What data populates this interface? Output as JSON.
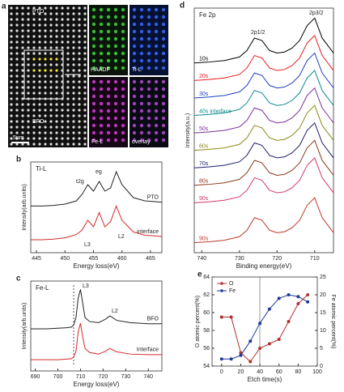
{
  "image_panel": {
    "panel": "a",
    "labels": [
      "PTO",
      "BFO",
      "5nm",
      "HAADF",
      "Ti-L",
      "Fe-L",
      "overlay"
    ]
  },
  "chart_data": [
    {
      "type": "line",
      "panel": "b",
      "title": "Ti-L",
      "xlabel": "Energy loss(eV)",
      "ylabel": "Intensity(arb.units)",
      "annotations": [
        "t2g",
        "eg",
        "L3",
        "L2"
      ],
      "x": [
        444,
        446,
        448,
        450,
        452,
        453,
        454,
        455,
        456,
        457,
        458,
        459,
        460,
        462,
        464,
        467
      ],
      "xlim": [
        444,
        467
      ],
      "xticks": [
        445,
        450,
        455,
        460,
        465
      ],
      "ylim": [
        0,
        1.4
      ],
      "series": [
        {
          "name": "PTO",
          "color": "#222222",
          "values": [
            0.72,
            0.72,
            0.73,
            0.75,
            0.8,
            0.9,
            1.05,
            0.95,
            1.1,
            0.95,
            1.0,
            1.25,
            1.05,
            0.85,
            0.8,
            0.78
          ]
        },
        {
          "name": "interface",
          "color": "#d62a2a",
          "values": [
            0.2,
            0.2,
            0.21,
            0.23,
            0.28,
            0.35,
            0.5,
            0.4,
            0.62,
            0.4,
            0.48,
            0.72,
            0.5,
            0.32,
            0.27,
            0.25
          ]
        }
      ]
    },
    {
      "type": "line",
      "panel": "c",
      "title": "Fe-L",
      "xlabel": "Energy loss(eV)",
      "ylabel": "Intensity(arb.units)",
      "annotations": [
        "L3",
        "L2"
      ],
      "x": [
        688,
        695,
        700,
        704,
        706,
        707,
        708,
        709,
        710,
        711,
        712,
        714,
        718,
        721,
        723,
        726,
        732,
        740,
        746
      ],
      "xlim": [
        688,
        746
      ],
      "xticks": [
        690,
        700,
        710,
        720,
        730,
        740
      ],
      "ylim": [
        0,
        1.6
      ],
      "series": [
        {
          "name": "BFO",
          "color": "#222222",
          "values": [
            0.75,
            0.75,
            0.76,
            0.77,
            0.78,
            0.82,
            0.95,
            1.3,
            1.45,
            1.2,
            0.95,
            0.88,
            0.86,
            0.92,
            0.98,
            0.9,
            0.86,
            0.84,
            0.84
          ]
        },
        {
          "name": "Interface",
          "color": "#d62a2a",
          "values": [
            0.2,
            0.2,
            0.2,
            0.21,
            0.22,
            0.25,
            0.35,
            0.7,
            0.85,
            0.6,
            0.4,
            0.33,
            0.3,
            0.35,
            0.4,
            0.34,
            0.3,
            0.29,
            0.29
          ]
        }
      ]
    },
    {
      "type": "line",
      "panel": "d",
      "title": "Fe 2p",
      "xlabel": "Binding energy(eV)",
      "ylabel": "Intensity(a.u.)",
      "annotations": [
        "2p1/2",
        "2p3/2"
      ],
      "x": [
        742,
        738,
        734,
        730,
        728,
        726,
        724,
        722,
        720,
        718,
        716,
        714,
        712,
        710,
        708,
        705
      ],
      "xlim": [
        742,
        705
      ],
      "xticks": [
        740,
        730,
        720,
        710
      ],
      "ylim": [
        -0.1,
        4.8
      ],
      "series": [
        {
          "name": "10s",
          "color": "#000000",
          "values": [
            3.7,
            3.72,
            3.75,
            3.82,
            3.95,
            4.2,
            4.15,
            3.95,
            3.9,
            3.92,
            4.0,
            4.15,
            4.45,
            4.6,
            4.2,
            3.9
          ]
        },
        {
          "name": "20s",
          "color": "#e41a1c",
          "values": [
            3.35,
            3.37,
            3.4,
            3.47,
            3.6,
            3.85,
            3.8,
            3.6,
            3.55,
            3.57,
            3.65,
            3.8,
            4.1,
            4.25,
            3.85,
            3.55
          ]
        },
        {
          "name": "30s",
          "color": "#1f3fbf",
          "values": [
            3.0,
            3.02,
            3.05,
            3.12,
            3.25,
            3.5,
            3.45,
            3.25,
            3.2,
            3.22,
            3.3,
            3.45,
            3.75,
            3.9,
            3.5,
            3.2
          ]
        },
        {
          "name": "40s interface",
          "color": "#0f8a8a",
          "values": [
            2.65,
            2.67,
            2.7,
            2.77,
            2.9,
            3.15,
            3.1,
            2.9,
            2.85,
            2.87,
            2.95,
            3.1,
            3.4,
            3.55,
            3.15,
            2.85
          ]
        },
        {
          "name": "50s",
          "color": "#7b2f9e",
          "values": [
            2.3,
            2.32,
            2.35,
            2.42,
            2.55,
            2.8,
            2.75,
            2.55,
            2.5,
            2.52,
            2.6,
            2.75,
            3.05,
            3.2,
            2.8,
            2.5
          ]
        },
        {
          "name": "60s",
          "color": "#8a8a1a",
          "values": [
            1.95,
            1.97,
            2.0,
            2.07,
            2.2,
            2.45,
            2.4,
            2.2,
            2.15,
            2.17,
            2.25,
            2.4,
            2.7,
            2.85,
            2.45,
            2.15
          ]
        },
        {
          "name": "70s",
          "color": "#1a1a6e",
          "values": [
            1.6,
            1.62,
            1.65,
            1.72,
            1.85,
            2.1,
            2.05,
            1.85,
            1.8,
            1.82,
            1.9,
            2.05,
            2.35,
            2.5,
            2.1,
            1.8
          ]
        },
        {
          "name": "80s",
          "color": "#8b3a1a",
          "values": [
            1.25,
            1.27,
            1.3,
            1.37,
            1.5,
            1.75,
            1.7,
            1.5,
            1.45,
            1.47,
            1.55,
            1.7,
            2.0,
            2.15,
            1.75,
            1.45
          ]
        },
        {
          "name": "90s",
          "color": "#d6336c",
          "values": [
            0.9,
            0.92,
            0.95,
            1.02,
            1.15,
            1.4,
            1.35,
            1.15,
            1.1,
            1.12,
            1.2,
            1.35,
            1.65,
            1.8,
            1.4,
            1.1
          ]
        },
        {
          "name": "90s",
          "color": "#c0392b",
          "values": [
            0.1,
            0.12,
            0.15,
            0.22,
            0.35,
            0.6,
            0.55,
            0.35,
            0.3,
            0.32,
            0.4,
            0.55,
            0.85,
            1.0,
            0.6,
            0.3
          ]
        }
      ]
    },
    {
      "type": "line",
      "panel": "e",
      "xlabel": "Etch time(s)",
      "ylabel": "O atomic percent(%)",
      "y2label": "Fe atomic percent(%)",
      "x": [
        0,
        10,
        20,
        30,
        40,
        50,
        60,
        70,
        80,
        90
      ],
      "xlim": [
        -10,
        100
      ],
      "xticks": [
        0,
        20,
        40,
        60,
        80,
        100
      ],
      "ylim": [
        54,
        64
      ],
      "yticks": [
        54,
        56,
        58,
        60,
        62,
        64
      ],
      "y2lim": [
        0,
        25
      ],
      "y2ticks": [
        0,
        5,
        10,
        15,
        20,
        25
      ],
      "legend": "upper-left",
      "markers": true,
      "series": [
        {
          "name": "O",
          "color": "#b03030",
          "values": [
            59.5,
            59.5,
            55.5,
            54.5,
            56,
            56.5,
            57,
            59,
            61,
            62
          ]
        },
        {
          "name": "Fe",
          "color": "#1f3a93",
          "axis": "y2",
          "values": [
            2,
            2,
            3,
            7,
            12,
            16,
            19,
            20,
            19.5,
            18
          ]
        }
      ]
    }
  ]
}
